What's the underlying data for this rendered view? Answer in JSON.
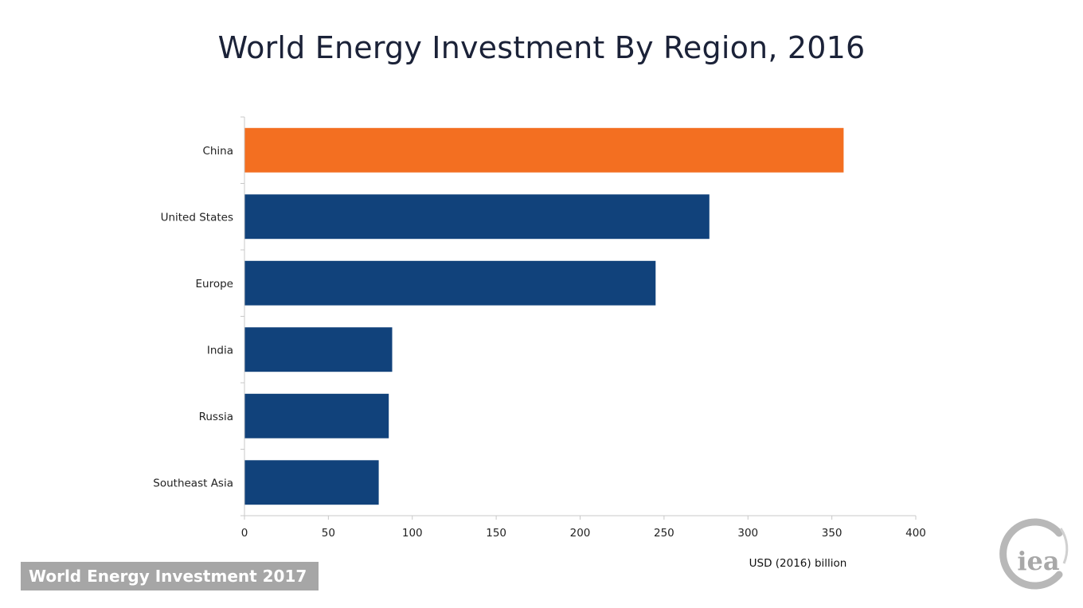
{
  "chart_data": {
    "type": "bar",
    "orientation": "horizontal",
    "title": "World Energy Investment By Region, 2016",
    "categories": [
      "China",
      "United States",
      "Europe",
      "India",
      "Russia",
      "Southeast Asia"
    ],
    "values": [
      357,
      277,
      245,
      88,
      86,
      80
    ],
    "highlight_category": "China",
    "xlabel": "USD (2016) billion",
    "ylabel": "",
    "xlim": [
      0,
      400
    ],
    "xticks": [
      0,
      50,
      100,
      150,
      200,
      250,
      300,
      350,
      400
    ],
    "xtick_labels": [
      "0",
      "50",
      "100",
      "150",
      "200",
      "250",
      "300",
      "350",
      "400"
    ],
    "grid": false,
    "legend": "none"
  },
  "colors": {
    "highlight": "#f36f21",
    "default": "#11427b",
    "title": "#1b2238",
    "axis": "#c8c8c8"
  },
  "footer": {
    "badge": "World Energy Investment 2017",
    "logo_text": "iea"
  }
}
